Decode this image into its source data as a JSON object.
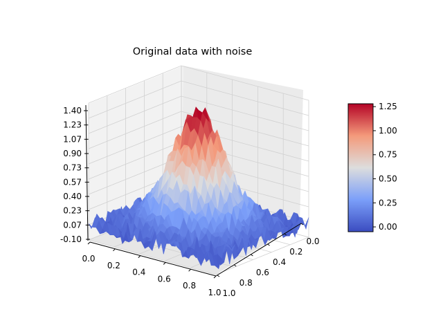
{
  "chart_data": {
    "type": "surface3d",
    "title": "Original data with noise",
    "xlabel": "",
    "ylabel": "",
    "zlabel": "",
    "x_axis": {
      "range": [
        0.0,
        1.0
      ],
      "ticks": [
        "0.0",
        "0.2",
        "0.4",
        "0.6",
        "0.8",
        "1.0"
      ]
    },
    "y_axis": {
      "range": [
        0.0,
        1.0
      ],
      "ticks": [
        "0.0",
        "0.2",
        "0.4",
        "0.6",
        "0.8",
        "1.0"
      ]
    },
    "z_axis": {
      "range": [
        -0.1,
        1.4
      ],
      "ticks": [
        "-0.10",
        "0.07",
        "0.23",
        "0.40",
        "0.57",
        "0.73",
        "0.90",
        "1.07",
        "1.23",
        "1.40"
      ]
    },
    "surface": {
      "shape": "gaussian peak plus random noise",
      "peak_value": 1.28,
      "peak_location": [
        0.5,
        0.5
      ],
      "base_value": 0.05,
      "noise_amplitude": 0.1
    },
    "colormap": "coolwarm",
    "colorbar": {
      "range": [
        -0.05,
        1.28
      ],
      "ticks": [
        "0.00",
        "0.25",
        "0.50",
        "0.75",
        "1.00",
        "1.25"
      ],
      "position": "right"
    },
    "grid": true
  }
}
